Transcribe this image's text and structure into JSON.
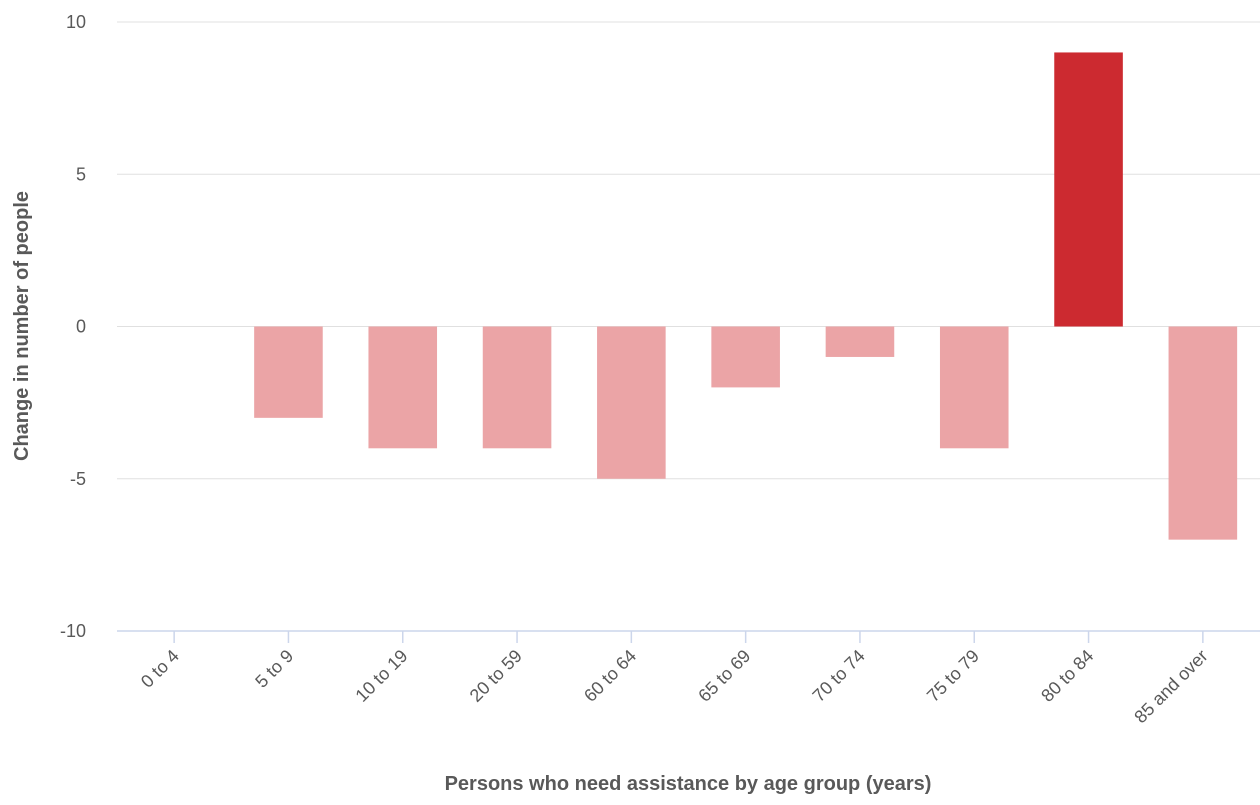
{
  "chart_data": {
    "type": "bar",
    "title": "",
    "xlabel": "Persons who need assistance by age group (years)",
    "ylabel": "Change in number of people",
    "categories": [
      "0 to 4",
      "5 to 9",
      "10 to 19",
      "20 to 59",
      "60 to 64",
      "65 to 69",
      "70 to 74",
      "75 to 79",
      "80 to 84",
      "85 and over"
    ],
    "values": [
      0,
      -3,
      -4,
      -4,
      -5,
      -2,
      -1,
      -4,
      9,
      -7
    ],
    "ylim": [
      -10,
      10
    ],
    "yticks": [
      "10",
      "5",
      "0",
      "-5",
      "-10"
    ],
    "grid": true,
    "legend": "none",
    "colors": {
      "positive": "#cc2a30",
      "negative": "#eba4a6",
      "grid": "#e0e0e0",
      "axis": "#ccd6eb",
      "text": "#595959"
    }
  }
}
